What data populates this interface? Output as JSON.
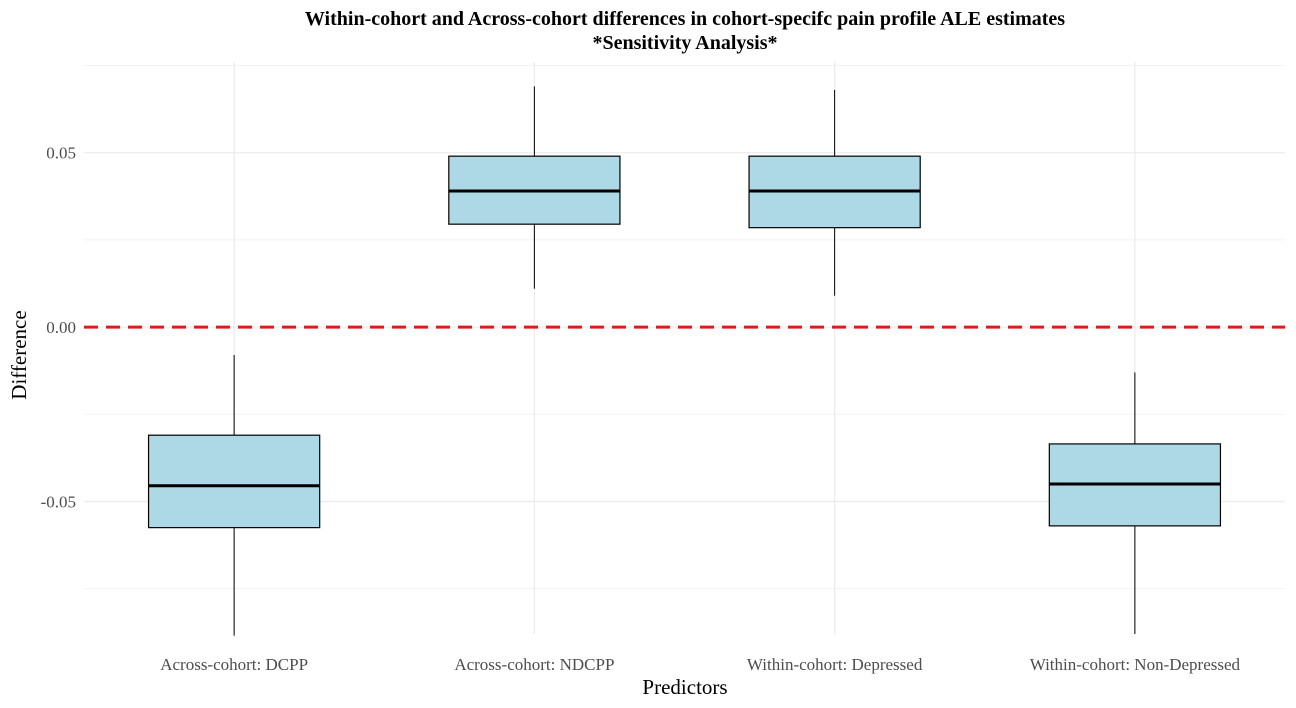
{
  "chart_data": {
    "type": "box",
    "title": "Within-cohort and Across-cohort differences in cohort-specifc pain profile ALE estimates",
    "subtitle": "*Sensitivity Analysis*",
    "xlabel": "Predictors",
    "ylabel": "Difference",
    "ylim": [
      -0.088,
      0.076
    ],
    "y_ticks": [
      0.05,
      0.0,
      -0.05
    ],
    "y_tick_labels": [
      "0.05",
      "0.00",
      "-0.05"
    ],
    "categories": [
      "Across-cohort: DCPP",
      "Across-cohort: NDCPP",
      "Within-cohort: Depressed",
      "Within-cohort: Non-Depressed"
    ],
    "boxes": [
      {
        "category": "Across-cohort: DCPP",
        "min": -0.0885,
        "q1": -0.0575,
        "median": -0.0455,
        "q3": -0.031,
        "max": -0.008
      },
      {
        "category": "Across-cohort: NDCPP",
        "min": 0.011,
        "q1": 0.0295,
        "median": 0.039,
        "q3": 0.049,
        "max": 0.069
      },
      {
        "category": "Within-cohort: Depressed",
        "min": 0.009,
        "q1": 0.0285,
        "median": 0.039,
        "q3": 0.049,
        "max": 0.068
      },
      {
        "category": "Within-cohort: Non-Depressed",
        "min": -0.088,
        "q1": -0.057,
        "median": -0.045,
        "q3": -0.0335,
        "max": -0.013
      }
    ],
    "reference_line": {
      "y": 0.0,
      "style": "dashed",
      "color": "#e31a1c"
    },
    "box_fill": "#add8e6",
    "grid": true,
    "legend": "none"
  }
}
